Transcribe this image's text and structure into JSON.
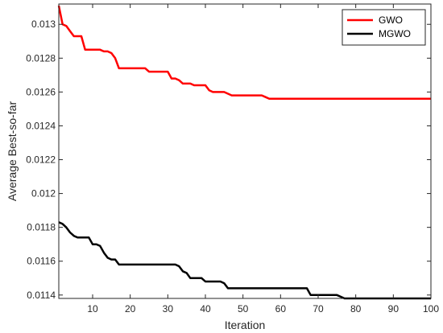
{
  "chart_data": {
    "type": "line",
    "title": "",
    "xlabel": "Iteration",
    "ylabel": "Average Best-so-far",
    "xlim": [
      1,
      100
    ],
    "ylim": [
      0.01138,
      0.01312
    ],
    "xticks": [
      10,
      20,
      30,
      40,
      50,
      60,
      70,
      80,
      90,
      100
    ],
    "xtick_labels": [
      "10",
      "20",
      "30",
      "40",
      "50",
      "60",
      "70",
      "80",
      "90",
      "100"
    ],
    "yticks": [
      0.0114,
      0.0116,
      0.0118,
      0.012,
      0.0122,
      0.0124,
      0.0126,
      0.0128,
      0.013
    ],
    "ytick_labels": [
      "0.0114",
      "0.0116",
      "0.0118",
      "0.012",
      "0.0122",
      "0.0124",
      "0.0126",
      "0.0128",
      "0.013"
    ],
    "grid": false,
    "legend_position": "top-right",
    "series": [
      {
        "name": "GWO",
        "color": "#ff0000",
        "x": [
          1,
          2,
          3,
          4,
          5,
          6,
          7,
          8,
          9,
          10,
          11,
          12,
          13,
          14,
          15,
          16,
          17,
          18,
          19,
          20,
          21,
          22,
          23,
          24,
          25,
          26,
          27,
          28,
          29,
          30,
          31,
          32,
          33,
          34,
          35,
          36,
          37,
          38,
          39,
          40,
          41,
          42,
          43,
          44,
          45,
          46,
          47,
          48,
          49,
          50,
          55,
          56,
          57,
          58,
          60,
          65,
          70,
          75,
          80,
          85,
          90,
          95,
          100
        ],
        "values": [
          0.01311,
          0.013,
          0.01299,
          0.01296,
          0.01293,
          0.01293,
          0.01293,
          0.01285,
          0.01285,
          0.01285,
          0.01285,
          0.01285,
          0.01284,
          0.01284,
          0.01283,
          0.0128,
          0.01274,
          0.01274,
          0.01274,
          0.01274,
          0.01274,
          0.01274,
          0.01274,
          0.01274,
          0.01272,
          0.01272,
          0.01272,
          0.01272,
          0.01272,
          0.01272,
          0.01268,
          0.01268,
          0.01267,
          0.01265,
          0.01265,
          0.01265,
          0.01264,
          0.01264,
          0.01264,
          0.01264,
          0.01261,
          0.0126,
          0.0126,
          0.0126,
          0.0126,
          0.01259,
          0.01258,
          0.01258,
          0.01258,
          0.01258,
          0.01258,
          0.01257,
          0.01256,
          0.01256,
          0.01256,
          0.01256,
          0.01256,
          0.01256,
          0.01256,
          0.01256,
          0.01256,
          0.01256,
          0.01256
        ]
      },
      {
        "name": "MGWO",
        "color": "#000000",
        "x": [
          1,
          2,
          3,
          4,
          5,
          6,
          7,
          8,
          9,
          10,
          11,
          12,
          13,
          14,
          15,
          16,
          17,
          18,
          19,
          20,
          25,
          30,
          31,
          32,
          33,
          34,
          35,
          36,
          37,
          38,
          39,
          40,
          41,
          42,
          43,
          44,
          45,
          46,
          47,
          48,
          50,
          55,
          60,
          65,
          67,
          68,
          70,
          75,
          76,
          77,
          80,
          85,
          90,
          95,
          100
        ],
        "values": [
          0.01183,
          0.01182,
          0.0118,
          0.01177,
          0.01175,
          0.01174,
          0.01174,
          0.01174,
          0.01174,
          0.0117,
          0.0117,
          0.01169,
          0.01165,
          0.01162,
          0.01161,
          0.01161,
          0.01158,
          0.01158,
          0.01158,
          0.01158,
          0.01158,
          0.01158,
          0.01158,
          0.01158,
          0.01157,
          0.01154,
          0.01153,
          0.0115,
          0.0115,
          0.0115,
          0.0115,
          0.01148,
          0.01148,
          0.01148,
          0.01148,
          0.01148,
          0.01147,
          0.01144,
          0.01144,
          0.01144,
          0.01144,
          0.01144,
          0.01144,
          0.01144,
          0.01144,
          0.0114,
          0.0114,
          0.0114,
          0.01139,
          0.01138,
          0.01138,
          0.01138,
          0.01138,
          0.01138,
          0.01138
        ]
      }
    ]
  }
}
